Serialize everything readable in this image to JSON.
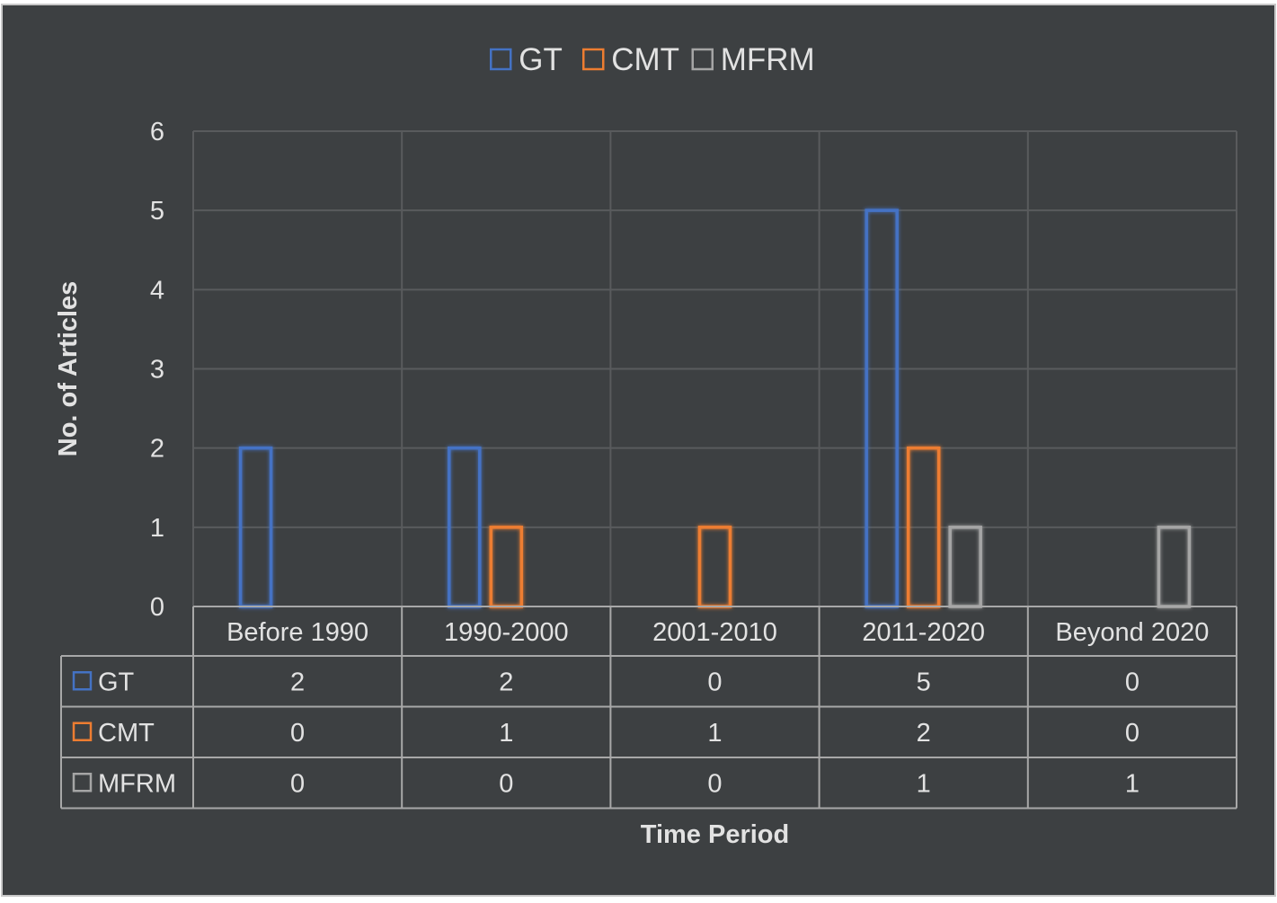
{
  "chart_data": {
    "type": "bar",
    "title": "",
    "xlabel": "Time Period",
    "ylabel": "No. of Articles",
    "ylim": [
      0,
      6
    ],
    "yticks": [
      "0",
      "1",
      "2",
      "3",
      "4",
      "5",
      "6"
    ],
    "grid": true,
    "legend_position": "top",
    "categories": [
      "Before 1990",
      "1990-2000",
      "2001-2010",
      "2011-2020",
      "Beyond 2020"
    ],
    "series": [
      {
        "name": "GT",
        "color": "#4472c4",
        "values": [
          2,
          2,
          0,
          5,
          0
        ]
      },
      {
        "name": "CMT",
        "color": "#ed7d31",
        "values": [
          0,
          1,
          1,
          2,
          0
        ]
      },
      {
        "name": "MFRM",
        "color": "#a5a5a5",
        "values": [
          0,
          0,
          0,
          1,
          1
        ]
      }
    ],
    "data_table": true,
    "background_color": "#3d4042",
    "text_color": "#e2e2e2",
    "grid_color": "#595b5d"
  }
}
